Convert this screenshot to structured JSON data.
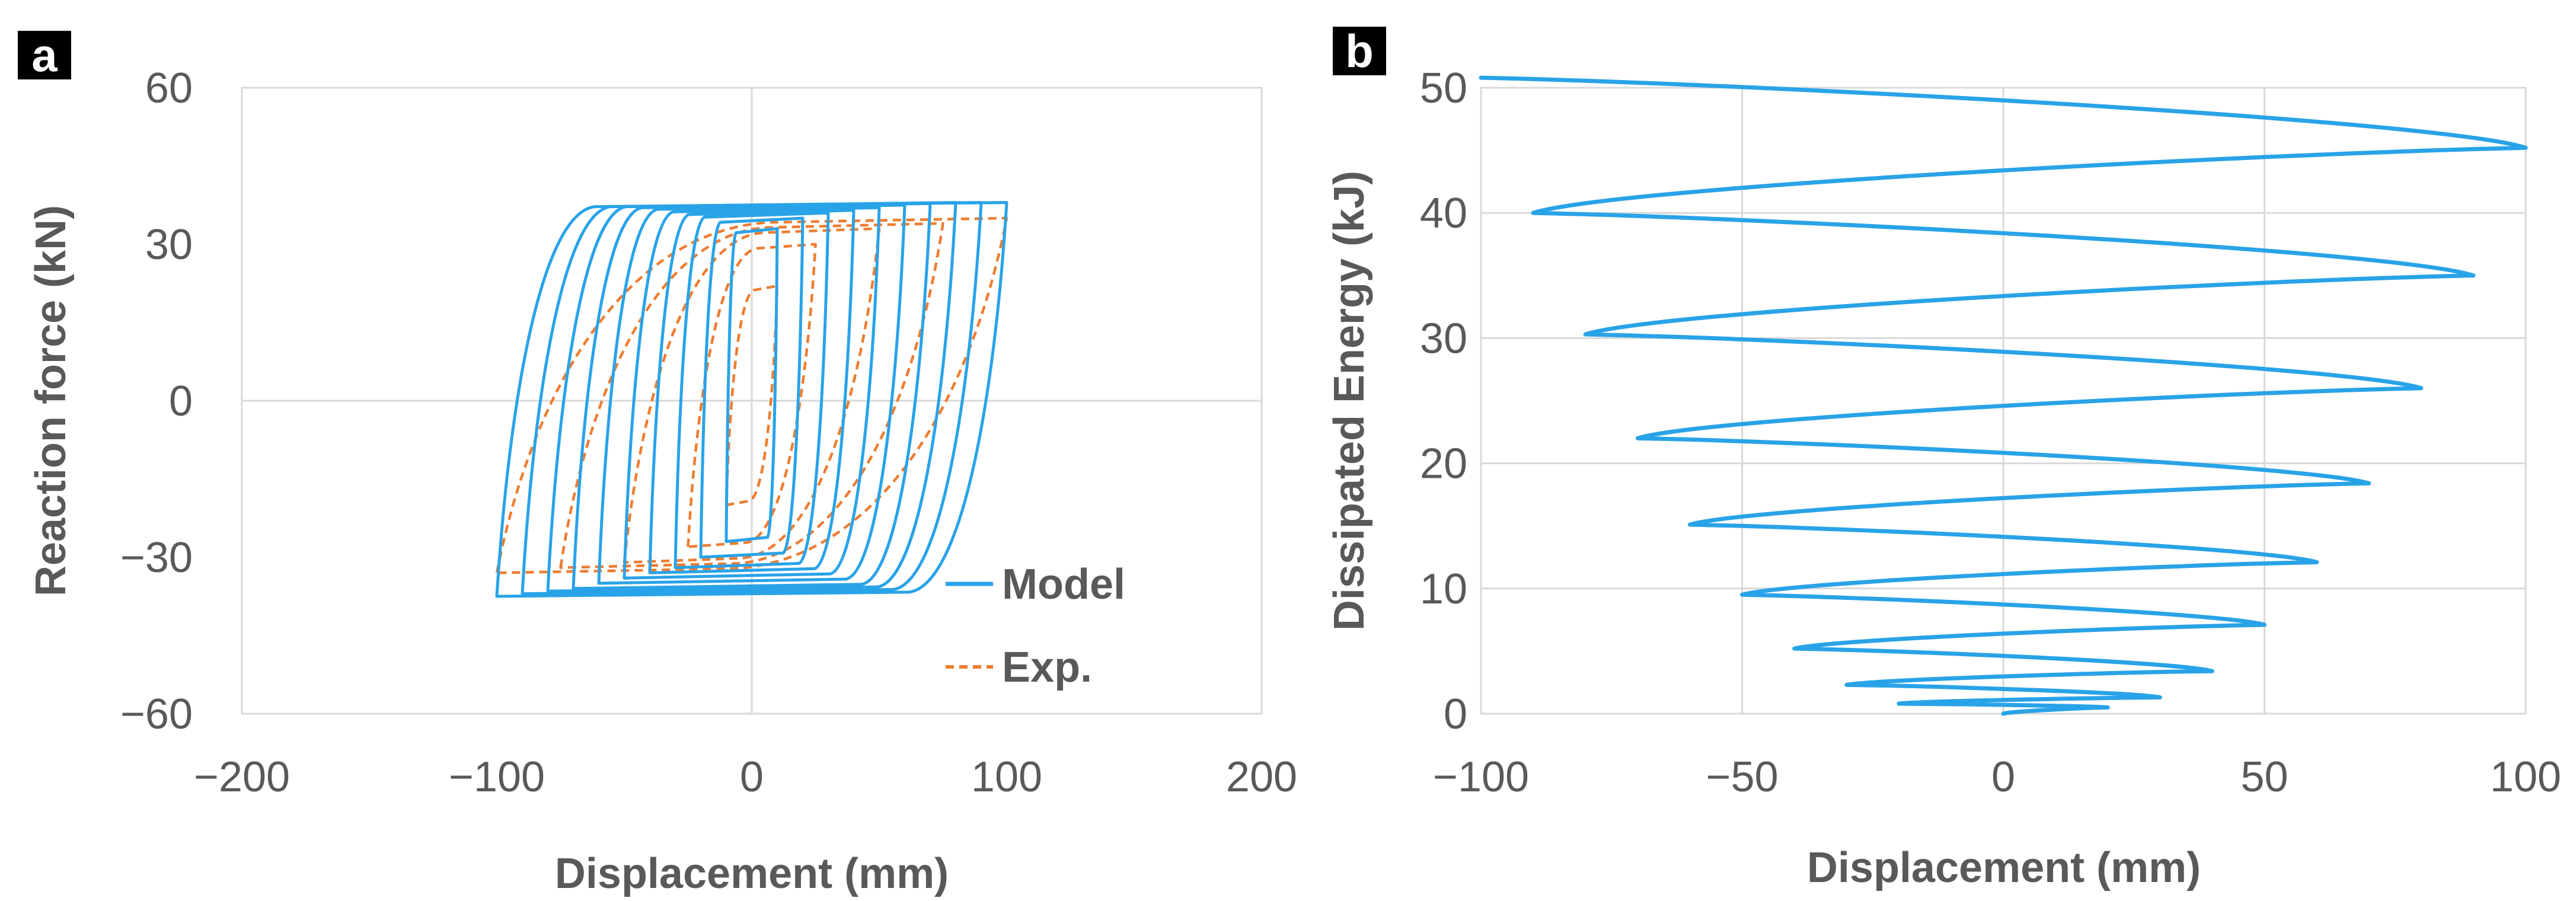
{
  "colors": {
    "model": "#29a3e8",
    "exp": "#ed7d31",
    "grid": "#d9d9d9",
    "text": "#595959",
    "badge": "#000000"
  },
  "chart_data": [
    {
      "panel_label": "a",
      "type": "line",
      "title": "",
      "xlabel": "Displacement (mm)",
      "ylabel": "Reaction force (kN)",
      "xlim": [
        -200,
        200
      ],
      "ylim": [
        -60,
        60
      ],
      "xticks": [
        -200,
        -100,
        0,
        100,
        200
      ],
      "yticks": [
        -60,
        -30,
        0,
        30,
        60
      ],
      "xtick_labels": [
        "−200",
        "−100",
        "0",
        "100",
        "200"
      ],
      "ytick_labels": [
        "−60",
        "−30",
        "0",
        "30",
        "60"
      ],
      "grid": "axes at zero",
      "legend": {
        "position": "bottom-right",
        "entries": [
          "Model",
          "Exp."
        ]
      },
      "series": [
        {
          "name": "Model",
          "style": "solid",
          "loops": [
            {
              "amplitude": 10,
              "force_min": -27,
              "force_max": 33
            },
            {
              "amplitude": 20,
              "force_min": -30,
              "force_max": 35
            },
            {
              "amplitude": 30,
              "force_min": -32,
              "force_max": 36
            },
            {
              "amplitude": 40,
              "force_min": -33,
              "force_max": 36.5
            },
            {
              "amplitude": 50,
              "force_min": -34,
              "force_max": 37
            },
            {
              "amplitude": 60,
              "force_min": -35,
              "force_max": 37.5
            },
            {
              "amplitude": 70,
              "force_min": -36,
              "force_max": 37.8
            },
            {
              "amplitude": 80,
              "force_min": -36.5,
              "force_max": 38
            },
            {
              "amplitude": 90,
              "force_min": -37,
              "force_max": 38
            },
            {
              "amplitude": 100,
              "force_min": -37.5,
              "force_max": 38
            }
          ]
        },
        {
          "name": "Exp.",
          "style": "dashed",
          "loops": [
            {
              "amplitude": 10,
              "force_min": -20,
              "force_max": 22
            },
            {
              "amplitude": 25,
              "force_min": -28,
              "force_max": 30
            },
            {
              "amplitude": 50,
              "force_min": -31,
              "force_max": 33
            },
            {
              "amplitude": 75,
              "force_min": -32,
              "force_max": 34
            },
            {
              "amplitude": 100,
              "force_min": -33,
              "force_max": 35
            }
          ]
        }
      ]
    },
    {
      "panel_label": "b",
      "type": "line",
      "title": "",
      "xlabel": "Displacement (mm)",
      "ylabel": "Dissipated Energy (kJ)",
      "xlim": [
        -100,
        100
      ],
      "ylim": [
        0,
        50
      ],
      "xticks": [
        -100,
        -50,
        0,
        50,
        100
      ],
      "yticks": [
        0,
        10,
        20,
        30,
        40,
        50
      ],
      "xtick_labels": [
        "−100",
        "−50",
        "0",
        "50",
        "100"
      ],
      "ytick_labels": [
        "0",
        "10",
        "20",
        "30",
        "40",
        "50"
      ],
      "grid": "on",
      "series": [
        {
          "name": "",
          "x": [
            0,
            20,
            -20,
            30,
            -30,
            40,
            -40,
            50,
            -50,
            60,
            -60,
            70,
            -70,
            80,
            -80,
            90,
            -90,
            100,
            -100
          ],
          "y": [
            0,
            0.5,
            0.8,
            1.3,
            2.3,
            3.4,
            5.2,
            7.1,
            9.5,
            12.1,
            15.1,
            18.4,
            22.0,
            26.0,
            30.3,
            35.0,
            40.0,
            45.2,
            50.8
          ]
        }
      ]
    }
  ]
}
